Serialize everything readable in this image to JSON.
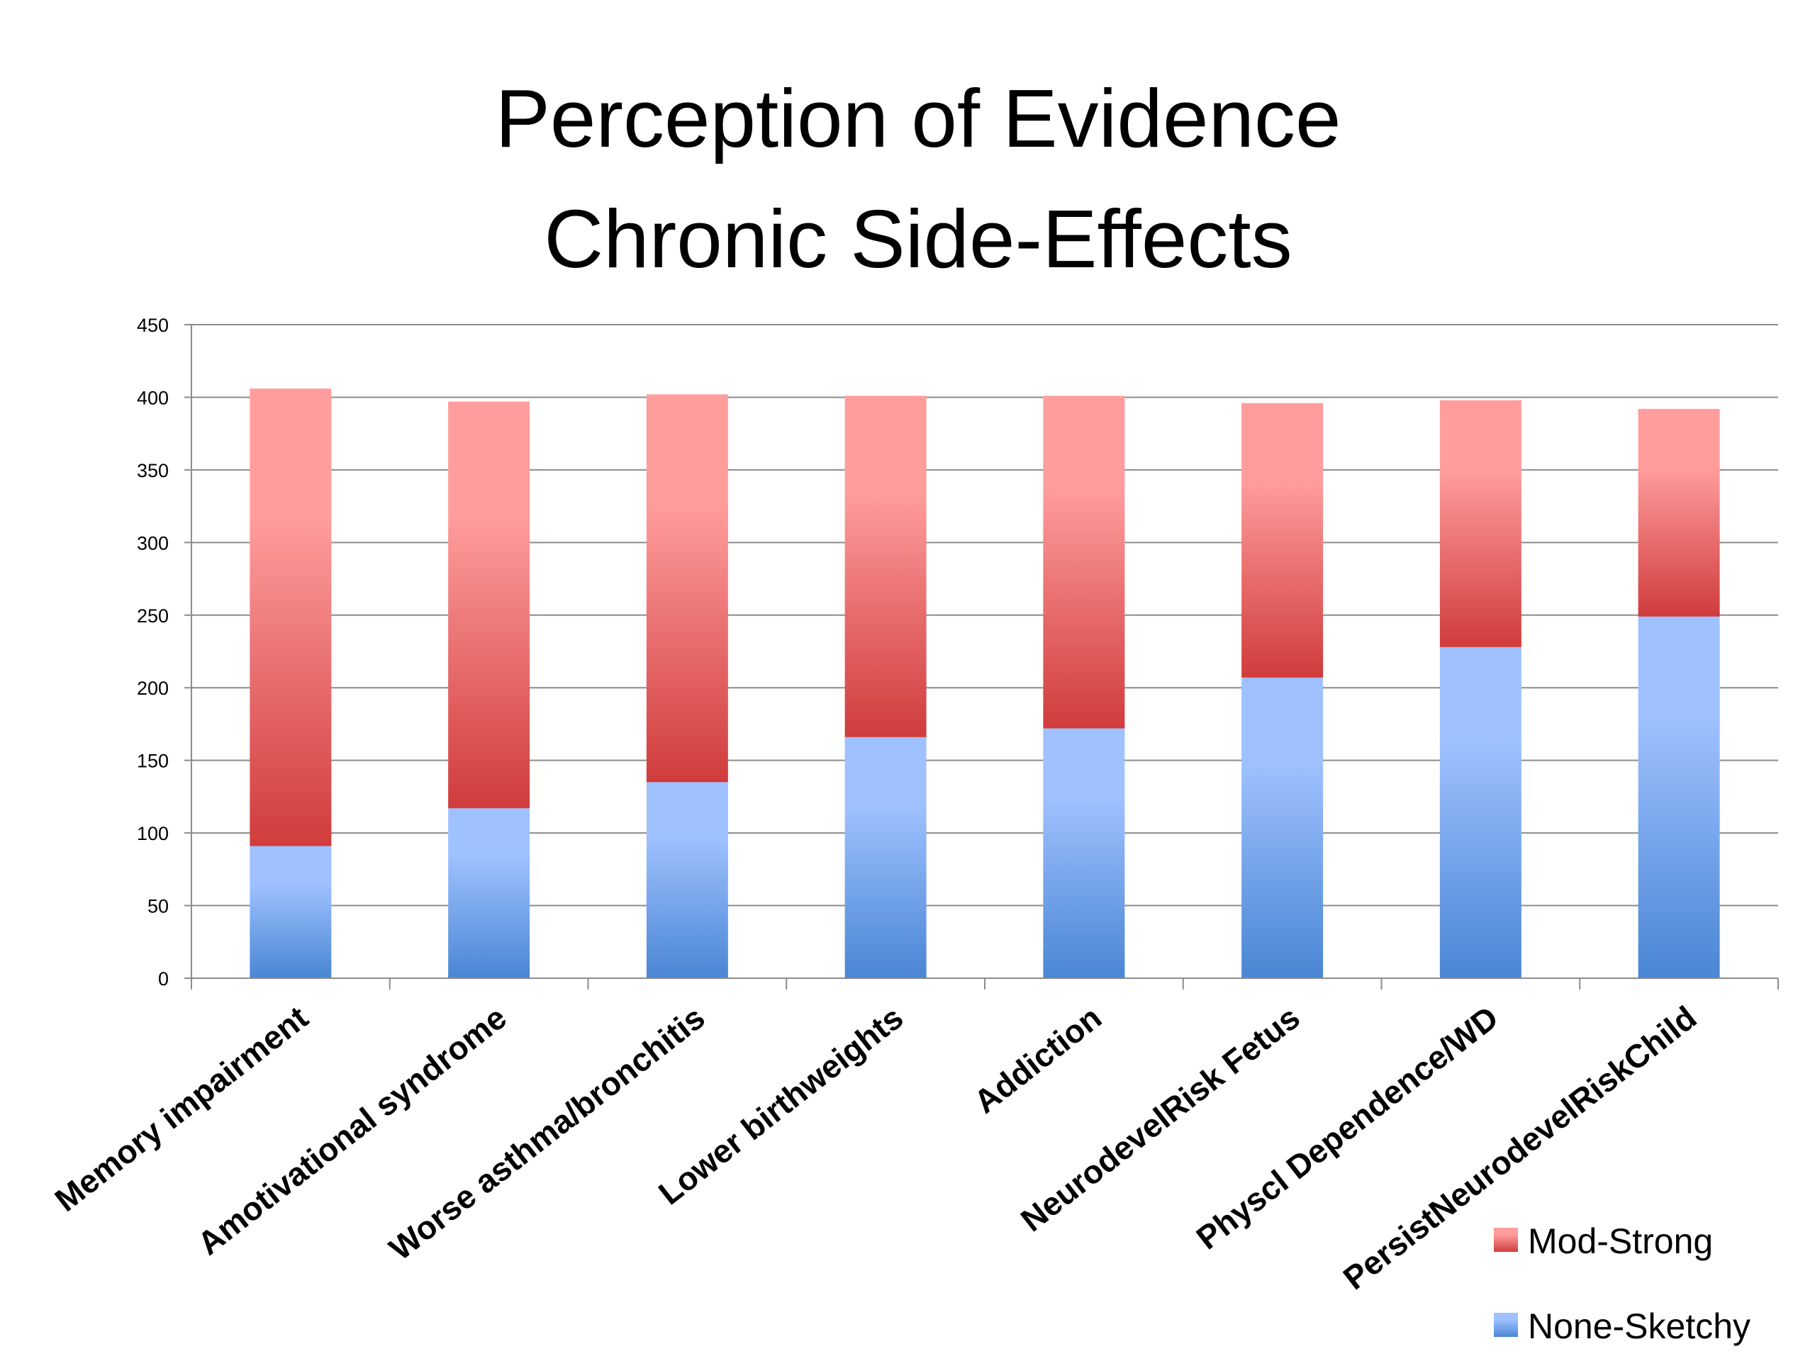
{
  "chart_data": {
    "type": "bar",
    "stacked": true,
    "title_lines": [
      "Perception of Evidence",
      "Chronic Side-Effects"
    ],
    "categories": [
      "Memory impairment",
      "Amotivational syndrome",
      "Worse asthma/bronchitis",
      "Lower birthweights",
      "Addiction",
      "NeurodevelRisk Fetus",
      "Physcl Dependence/WD",
      "PersistNeurodevelRiskChild"
    ],
    "series": [
      {
        "name": "None-Sketchy",
        "color": "#4a86d4",
        "color_light": "#9fc1ff",
        "values": [
          91,
          117,
          135,
          166,
          172,
          207,
          228,
          249
        ]
      },
      {
        "name": "Mod-Strong",
        "color": "#d03c3c",
        "color_light": "#ff9d9d",
        "values": [
          315,
          280,
          267,
          235,
          229,
          189,
          170,
          143
        ]
      }
    ],
    "ylim": [
      0,
      450
    ],
    "yticks": [
      0,
      50,
      100,
      150,
      200,
      250,
      300,
      350,
      400,
      450
    ],
    "grid": true,
    "legend": {
      "position": "bottom-right",
      "order": [
        "Mod-Strong",
        "None-Sketchy"
      ]
    }
  }
}
